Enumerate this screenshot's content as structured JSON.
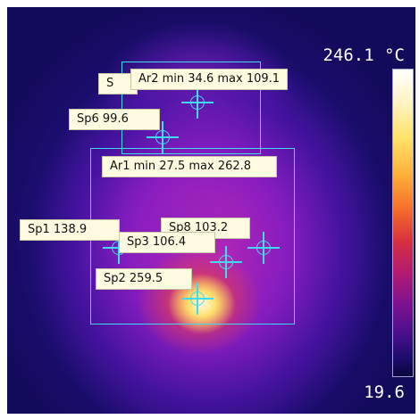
{
  "scale": {
    "max_label": "246.1 °C",
    "min_label": "19.6"
  },
  "areas": [
    {
      "id": "Ar2",
      "label": "Ar2 min 34.6 max 109.1"
    },
    {
      "id": "Ar1",
      "label": "Ar1 min 27.5 max 262.8"
    }
  ],
  "spots": {
    "sp6": "Sp6 99.6",
    "sp1": "Sp1 138.9",
    "sp8": "Sp8 103.2",
    "sp3": "Sp3 106.4",
    "sp2": "Sp2 259.5",
    "hidden_stub": "S"
  },
  "colors": {
    "marker": "#43d9f0",
    "label_bg": "#fffbe0"
  }
}
